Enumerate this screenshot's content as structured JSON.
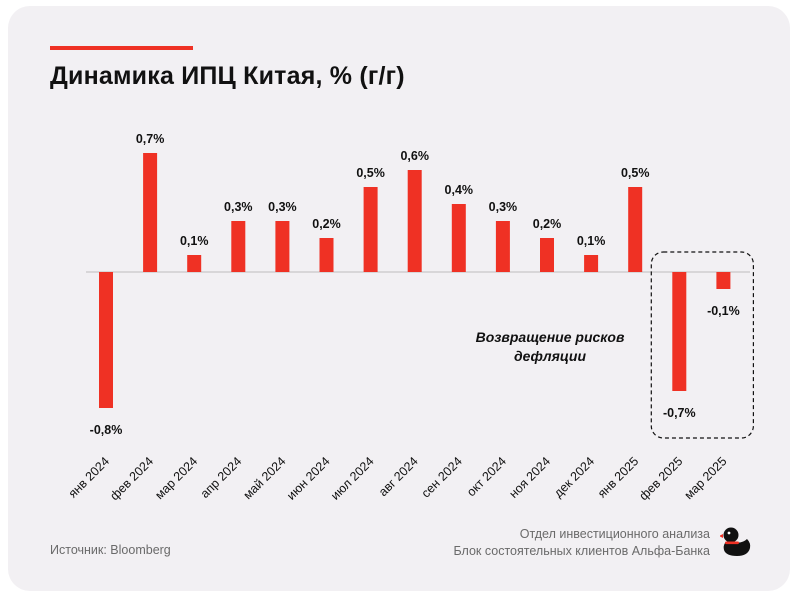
{
  "title": "Динамика ИПЦ Китая, % (г/г)",
  "source": "Источник: Bloomberg",
  "credits": {
    "line1": "Отдел инвестиционного анализа",
    "line2": "Блок состоятельных клиентов Альфа-Банка"
  },
  "annotation": {
    "line1": "Возвращение рисков",
    "line2": "дефляции"
  },
  "colors": {
    "bar": "#ef3124",
    "accent": "#ef3124",
    "background": "#f2f0f3",
    "text": "#111111",
    "muted": "#6a6a6a"
  },
  "chart_data": {
    "type": "bar",
    "categories": [
      "янв 2024",
      "фев 2024",
      "мар 2024",
      "апр 2024",
      "май 2024",
      "июн 2024",
      "июл 2024",
      "авг 2024",
      "сен 2024",
      "окт 2024",
      "ноя 2024",
      "дек 2024",
      "янв 2025",
      "фев 2025",
      "мар 2025"
    ],
    "values": [
      -0.8,
      0.7,
      0.1,
      0.3,
      0.3,
      0.2,
      0.5,
      0.6,
      0.4,
      0.3,
      0.2,
      0.1,
      0.5,
      -0.7,
      -0.1
    ],
    "labels": [
      "-0,8%",
      "0,7%",
      "0,1%",
      "0,3%",
      "0,3%",
      "0,2%",
      "0,5%",
      "0,6%",
      "0,4%",
      "0,3%",
      "0,2%",
      "0,1%",
      "0,5%",
      "-0,7%",
      "-0,1%"
    ],
    "highlighted_categories": [
      "фев 2025",
      "мар 2025"
    ],
    "title": "Динамика ИПЦ Китая, % (г/г)",
    "xlabel": "",
    "ylabel": "",
    "grid": false,
    "legend": "none"
  }
}
